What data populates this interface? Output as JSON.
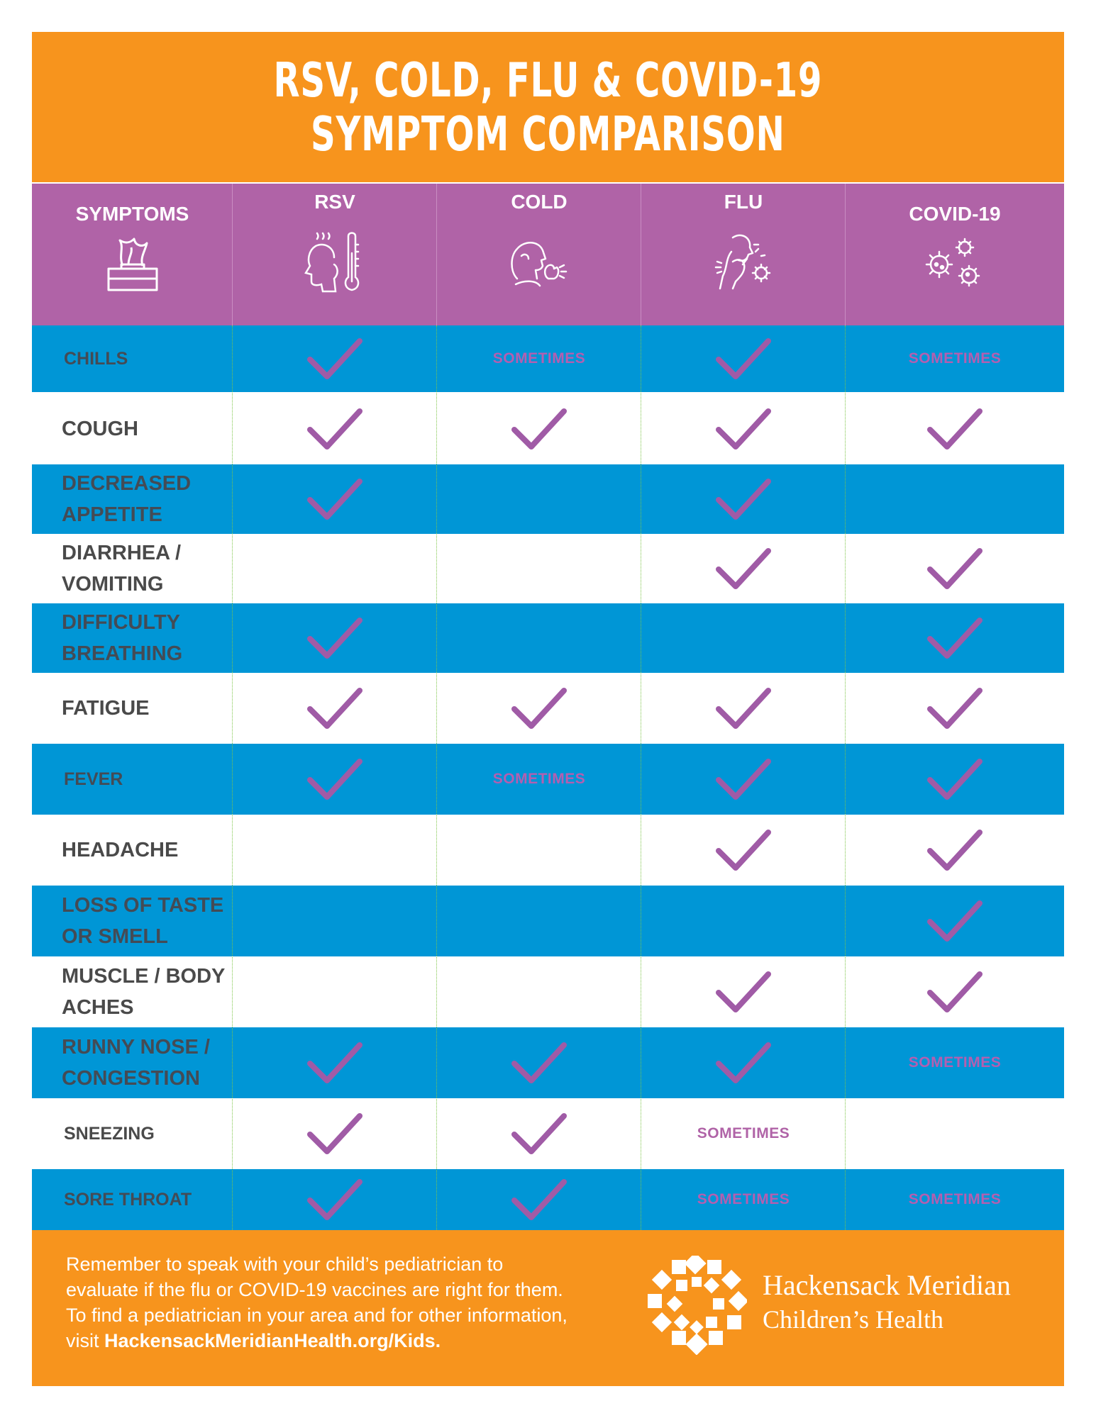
{
  "title": {
    "line1": "RSV, COLD, FLU & COVID-19",
    "line2": "SYMPTOM COMPARISON"
  },
  "columns": {
    "symptoms": "SYMPTOMS",
    "rsv": "RSV",
    "cold": "COLD",
    "flu": "FLU",
    "covid": "COVID-19"
  },
  "icons": {
    "symptoms": "tissue-box-icon",
    "rsv": "fever-thermometer-icon",
    "cold": "sneezing-person-icon",
    "flu": "coughing-person-icon",
    "covid": "virus-icon"
  },
  "marks": {
    "check": "checkmark",
    "sometimes": "SOMETIMES"
  },
  "rows": [
    {
      "symptom": "CHILLS",
      "values": [
        "check",
        "sometimes",
        "check",
        "sometimes"
      ]
    },
    {
      "symptom": "COUGH",
      "values": [
        "check",
        "check",
        "check",
        "check"
      ]
    },
    {
      "symptom": "DECREASED APPETITE",
      "values": [
        "check",
        "",
        "check",
        ""
      ]
    },
    {
      "symptom": "DIARRHEA / VOMITING",
      "values": [
        "",
        "",
        "check",
        "check"
      ]
    },
    {
      "symptom": "DIFFICULTY BREATHING",
      "values": [
        "check",
        "",
        "",
        "check"
      ]
    },
    {
      "symptom": "FATIGUE",
      "values": [
        "check",
        "check",
        "check",
        "check"
      ]
    },
    {
      "symptom": "FEVER",
      "values": [
        "check",
        "sometimes",
        "check",
        "check"
      ]
    },
    {
      "symptom": "HEADACHE",
      "values": [
        "",
        "",
        "check",
        "check"
      ]
    },
    {
      "symptom": "LOSS OF TASTE OR SMELL",
      "values": [
        "",
        "",
        "",
        "check"
      ]
    },
    {
      "symptom": "MUSCLE / BODY ACHES",
      "values": [
        "",
        "",
        "check",
        "check"
      ]
    },
    {
      "symptom": "RUNNY NOSE / CONGESTION",
      "values": [
        "check",
        "check",
        "check",
        "sometimes"
      ]
    },
    {
      "symptom": "SNEEZING",
      "values": [
        "check",
        "check",
        "sometimes",
        ""
      ]
    },
    {
      "symptom": "SORE THROAT",
      "values": [
        "check",
        "check",
        "sometimes",
        "sometimes"
      ]
    }
  ],
  "footer": {
    "line1": "Remember to speak with your child’s pediatrician to",
    "line2": "evaluate if the flu or COVID-19 vaccines are right for them.",
    "line3": "To find a pediatrician in your area and for other information,",
    "line4_prefix": "visit ",
    "url": "HackensackMeridianHealth.org/Kids."
  },
  "brand": {
    "name_line1": "Hackensack Meridian",
    "name_line2": "Children’s Health",
    "logo": "hackensack-meridian-logo"
  },
  "colors": {
    "orange": "#f7941d",
    "purple": "#b063a7",
    "blue": "#0096d6",
    "check": "#a05ba6"
  }
}
